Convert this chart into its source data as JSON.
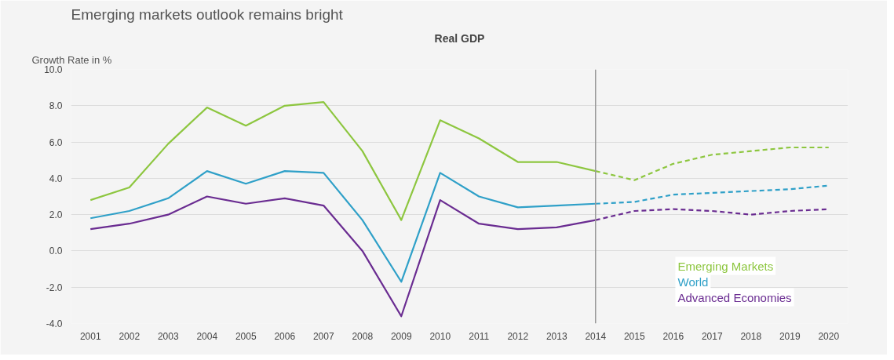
{
  "chart_data": {
    "type": "line",
    "title": "Emerging markets outlook remains bright",
    "subtitle": "Real GDP",
    "ylabel": "Growth Rate in %",
    "categories": [
      "2001",
      "2002",
      "2003",
      "2004",
      "2005",
      "2006",
      "2007",
      "2008",
      "2009",
      "2010",
      "2011",
      "2012",
      "2013",
      "2014",
      "2015",
      "2016",
      "2017",
      "2018",
      "2019",
      "2020"
    ],
    "series": [
      {
        "name": "Emerging Markets",
        "color": "#8dc63f",
        "line_style": "solid",
        "values": [
          2.8,
          3.5,
          5.9,
          7.9,
          6.9,
          8.0,
          8.2,
          5.5,
          1.7,
          7.2,
          6.2,
          4.9,
          4.9,
          4.4,
          null,
          null,
          null,
          null,
          null,
          null
        ]
      },
      {
        "name": "World",
        "color": "#2fa0c8",
        "line_style": "solid",
        "values": [
          1.8,
          2.2,
          2.9,
          4.4,
          3.7,
          4.4,
          4.3,
          1.7,
          -1.7,
          4.3,
          3.0,
          2.4,
          2.5,
          2.6,
          null,
          null,
          null,
          null,
          null,
          null
        ]
      },
      {
        "name": "Advanced Economies",
        "color": "#6a2c91",
        "line_style": "solid",
        "values": [
          1.2,
          1.5,
          2.0,
          3.0,
          2.6,
          2.9,
          2.5,
          0.0,
          -3.6,
          2.8,
          1.5,
          1.2,
          1.3,
          1.7,
          null,
          null,
          null,
          null,
          null,
          null
        ]
      },
      {
        "color": "#8dc63f",
        "line_style": "dashed",
        "values": [
          null,
          null,
          null,
          null,
          null,
          null,
          null,
          null,
          null,
          null,
          null,
          null,
          null,
          4.4,
          3.9,
          4.8,
          5.3,
          5.5,
          5.7,
          5.7
        ]
      },
      {
        "color": "#2fa0c8",
        "line_style": "dashed",
        "values": [
          null,
          null,
          null,
          null,
          null,
          null,
          null,
          null,
          null,
          null,
          null,
          null,
          null,
          2.6,
          2.7,
          3.1,
          3.2,
          3.3,
          3.4,
          3.6
        ]
      },
      {
        "color": "#6a2c91",
        "line_style": "dashed",
        "values": [
          null,
          null,
          null,
          null,
          null,
          null,
          null,
          null,
          null,
          null,
          null,
          null,
          null,
          1.7,
          2.2,
          2.3,
          2.2,
          2.0,
          2.2,
          2.3
        ]
      }
    ],
    "ylim": [
      -4,
      10
    ],
    "yticks": [
      {
        "value": -4,
        "label": "-4.0"
      },
      {
        "value": -2,
        "label": "-2.0"
      },
      {
        "value": 0,
        "label": "0.0"
      },
      {
        "value": 2,
        "label": "2.0"
      },
      {
        "value": 4,
        "label": "4.0"
      },
      {
        "value": 6,
        "label": "6.0"
      },
      {
        "value": 8,
        "label": "8.0"
      },
      {
        "value": 10,
        "label": "10.0"
      }
    ],
    "ref_lines": [
      {
        "axis": "x",
        "value": "2014",
        "color": "#999999"
      }
    ],
    "grid": "y",
    "legend": "bottom right"
  }
}
